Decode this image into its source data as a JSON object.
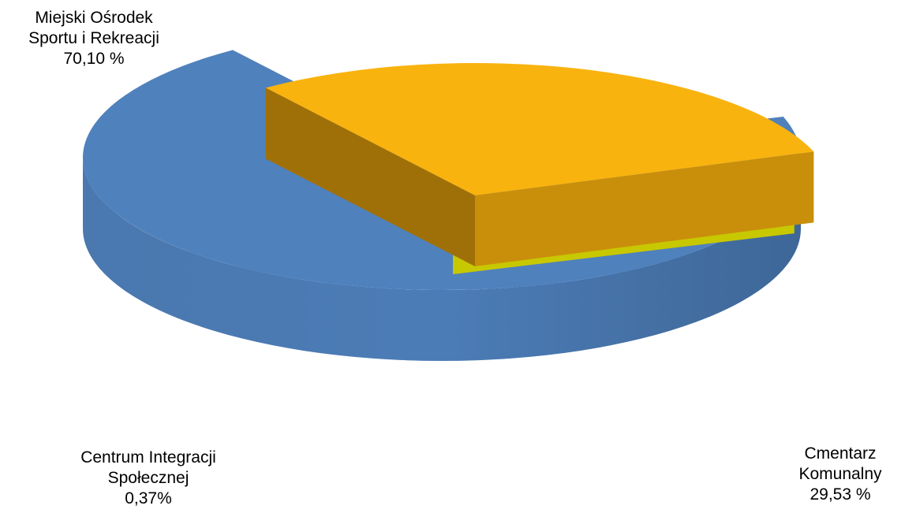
{
  "chart_data": {
    "type": "pie",
    "title": "",
    "slices": [
      {
        "label_lines": [
          "Miejski Ośrodek",
          "Sportu i Rekreacji"
        ],
        "value_text": "70,10 %",
        "value": 70.1,
        "color": "#4F81BD"
      },
      {
        "label_lines": [
          "Cmentarz",
          "Komunalny"
        ],
        "value_text": "29,53 %",
        "value": 29.53,
        "color": "#F9B30F"
      },
      {
        "label_lines": [
          "Centrum Integracji",
          "Społecznej"
        ],
        "value_text": "0,37%",
        "value": 0.37,
        "color": "#E0E000"
      }
    ]
  }
}
